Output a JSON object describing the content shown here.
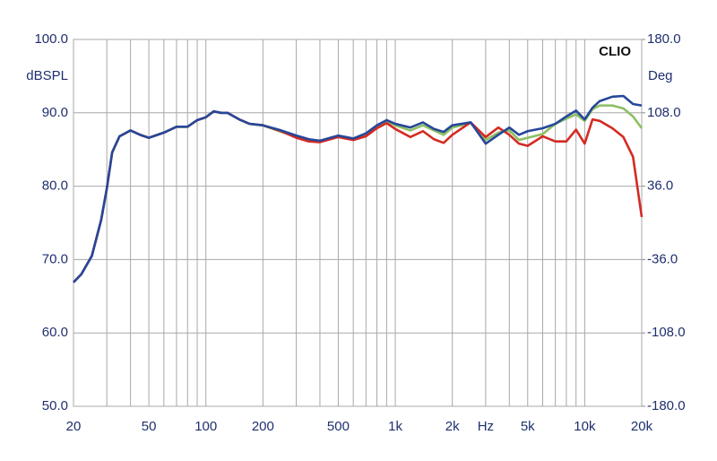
{
  "chart_data": {
    "type": "line",
    "brand": "CLIO",
    "y_label": "dBSPL",
    "y2_label": "Deg",
    "x_scale": "log",
    "grid": true,
    "x": [
      20,
      22,
      25,
      28,
      30,
      32,
      35,
      40,
      45,
      50,
      60,
      70,
      80,
      90,
      100,
      110,
      120,
      130,
      150,
      170,
      200,
      250,
      300,
      350,
      400,
      500,
      600,
      700,
      800,
      900,
      1000,
      1200,
      1400,
      1600,
      1800,
      2000,
      2500,
      3000,
      3500,
      4000,
      4500,
      5000,
      6000,
      7000,
      8000,
      9000,
      10000,
      11000,
      12000,
      14000,
      16000,
      18000,
      20000
    ],
    "series": [
      {
        "color": "#8dbf62",
        "values": [
          66.9,
          68,
          70.5,
          75.4,
          79.7,
          84.6,
          86.8,
          87.6,
          87,
          86.6,
          87.3,
          88.1,
          88.1,
          89,
          89.4,
          90.2,
          90,
          90,
          89.1,
          88.5,
          88.3,
          87.4,
          86.7,
          86.2,
          86.1,
          86.8,
          86.4,
          87,
          88.1,
          88.8,
          88.3,
          87.6,
          88.3,
          87.6,
          87,
          88,
          88.6,
          86.3,
          87.3,
          87.6,
          86.3,
          86.6,
          87.1,
          88.5,
          89.2,
          89.8,
          88.9,
          90.5,
          91,
          91,
          90.6,
          89.5,
          87.9
        ]
      },
      {
        "color": "#d42a22",
        "values": [
          66.9,
          68,
          70.5,
          75.4,
          79.7,
          84.6,
          86.8,
          87.6,
          87,
          86.6,
          87.3,
          88.1,
          88.1,
          89,
          89.4,
          90.2,
          90,
          90,
          89.1,
          88.5,
          88.3,
          87.5,
          86.6,
          86.1,
          86,
          86.7,
          86.3,
          86.8,
          87.9,
          88.6,
          87.8,
          86.7,
          87.5,
          86.4,
          85.9,
          87,
          88.7,
          86.7,
          88,
          87,
          85.8,
          85.5,
          86.8,
          86.1,
          86.1,
          87.7,
          85.8,
          89.1,
          88.9,
          87.9,
          86.7,
          84,
          75.8
        ]
      },
      {
        "color": "#25479a",
        "values": [
          66.9,
          68,
          70.5,
          75.4,
          79.7,
          84.6,
          86.8,
          87.6,
          87,
          86.6,
          87.3,
          88.1,
          88.1,
          89,
          89.4,
          90.2,
          90,
          90,
          89.1,
          88.5,
          88.3,
          87.6,
          86.9,
          86.4,
          86.2,
          86.9,
          86.5,
          87.2,
          88.3,
          89,
          88.5,
          88,
          88.7,
          87.8,
          87.4,
          88.3,
          88.7,
          85.8,
          87,
          88,
          87,
          87.5,
          87.9,
          88.5,
          89.5,
          90.3,
          89.1,
          90.7,
          91.6,
          92.2,
          92.3,
          91.2,
          91
        ]
      }
    ],
    "xlim": [
      20,
      20000
    ],
    "xticks": [
      20,
      50,
      100,
      200,
      500,
      {
        "value": 1000,
        "label": "1k"
      },
      {
        "value": 2000,
        "label": "2k"
      },
      {
        "value": 3000,
        "label": "Hz"
      },
      {
        "value": 5000,
        "label": "5k"
      },
      {
        "value": 10000,
        "label": "10k"
      },
      {
        "value": 20000,
        "label": "20k"
      }
    ],
    "xminor": [
      30,
      40,
      60,
      70,
      80,
      90,
      300,
      400,
      600,
      700,
      800,
      900,
      4000,
      6000,
      7000,
      8000,
      9000
    ],
    "ylim": [
      50,
      100
    ],
    "yticks": [
      {
        "value": 50,
        "label": "50.0"
      },
      {
        "value": 60,
        "label": "60.0"
      },
      {
        "value": 70,
        "label": "70.0"
      },
      {
        "value": 80,
        "label": "80.0"
      },
      {
        "value": 90,
        "label": "90.0"
      },
      {
        "value": 100,
        "label": "100.0"
      }
    ],
    "y2lim": [
      -180,
      180
    ],
    "y2ticks": [
      {
        "value": -180,
        "label": "-180.0"
      },
      {
        "value": -108,
        "label": "-108.0"
      },
      {
        "value": -36,
        "label": "-36.0"
      },
      {
        "value": 36,
        "label": "36.0"
      },
      {
        "value": 108,
        "label": "108.0"
      },
      {
        "value": 180,
        "label": "180.0"
      }
    ]
  }
}
